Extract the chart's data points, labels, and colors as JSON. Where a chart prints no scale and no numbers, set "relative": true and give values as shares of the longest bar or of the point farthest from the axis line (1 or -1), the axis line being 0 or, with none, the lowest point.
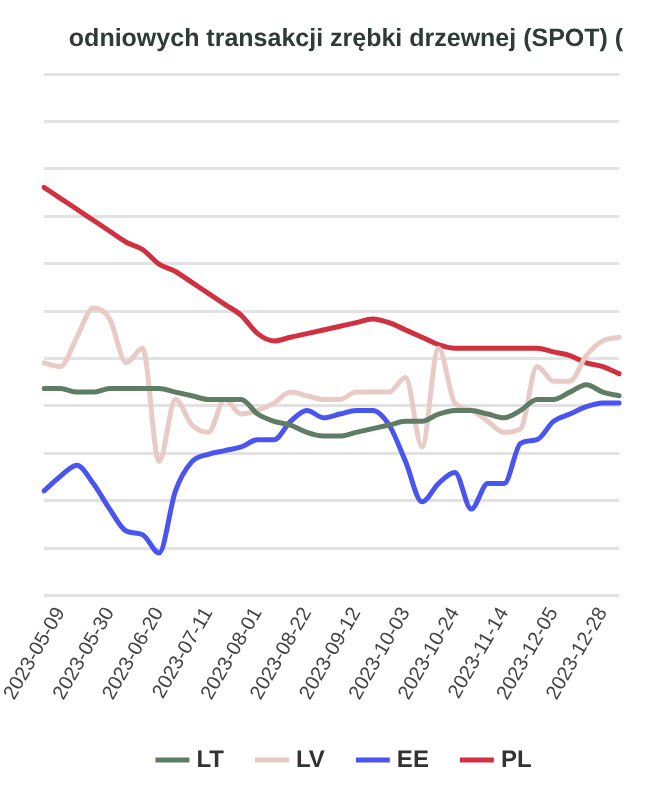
{
  "chart_data": {
    "type": "line",
    "title": "odniowych transakcji zrębki drzewnej (SPOT) (",
    "relative": true,
    "grid": "y",
    "legend": "bottom",
    "marker": "none",
    "line_style": "solid",
    "categories": [
      null,
      "2023-05-09",
      null,
      null,
      "2023-05-30",
      null,
      null,
      "2023-06-20",
      null,
      null,
      "2023-07-11",
      null,
      null,
      "2023-08-01",
      null,
      null,
      "2023-08-22",
      null,
      null,
      "2023-09-12",
      null,
      null,
      "2023-10-03",
      null,
      null,
      "2023-10-24",
      null,
      null,
      "2023-11-14",
      null,
      null,
      "2023-12-05",
      null,
      null,
      "2023-12-28",
      null
    ],
    "series": [
      {
        "name": "LT",
        "color": "#5e7d64",
        "values": [
          0.45,
          0.45,
          0.44,
          0.44,
          0.45,
          0.45,
          0.45,
          0.45,
          0.44,
          0.43,
          0.42,
          0.42,
          0.42,
          0.38,
          0.36,
          0.35,
          0.33,
          0.32,
          0.32,
          0.33,
          0.34,
          0.35,
          0.36,
          0.36,
          0.38,
          0.39,
          0.39,
          0.38,
          0.37,
          0.39,
          0.42,
          0.42,
          0.44,
          0.46,
          0.44,
          0.43
        ]
      },
      {
        "name": "LV",
        "color": "#e8cbc6",
        "values": [
          0.52,
          0.51,
          0.59,
          0.67,
          0.64,
          0.52,
          0.56,
          0.25,
          0.42,
          0.35,
          0.33,
          0.42,
          0.38,
          0.39,
          0.41,
          0.44,
          0.43,
          0.42,
          0.42,
          0.44,
          0.44,
          0.44,
          0.48,
          0.29,
          0.56,
          0.41,
          0.39,
          0.36,
          0.33,
          0.34,
          0.51,
          0.47,
          0.47,
          0.54,
          0.58,
          0.59
        ]
      },
      {
        "name": "EE",
        "color": "#4a55f0",
        "values": [
          0.17,
          0.21,
          0.24,
          0.19,
          0.12,
          0.06,
          0.05,
          0.0,
          0.17,
          0.25,
          0.27,
          0.28,
          0.29,
          0.31,
          0.31,
          0.36,
          0.39,
          0.37,
          0.38,
          0.39,
          0.39,
          0.35,
          0.25,
          0.14,
          0.19,
          0.22,
          0.12,
          0.19,
          0.19,
          0.3,
          0.31,
          0.36,
          0.38,
          0.4,
          0.41,
          0.41
        ]
      },
      {
        "name": "PL",
        "color": "#d0303f",
        "values": [
          1.0,
          0.97,
          0.94,
          0.91,
          0.88,
          0.85,
          0.83,
          0.79,
          0.77,
          0.74,
          0.71,
          0.68,
          0.65,
          0.6,
          0.58,
          0.59,
          0.6,
          0.61,
          0.62,
          0.63,
          0.64,
          0.63,
          0.61,
          0.59,
          0.57,
          0.56,
          0.56,
          0.56,
          0.56,
          0.56,
          0.56,
          0.55,
          0.54,
          0.52,
          0.51,
          0.49
        ]
      }
    ]
  }
}
